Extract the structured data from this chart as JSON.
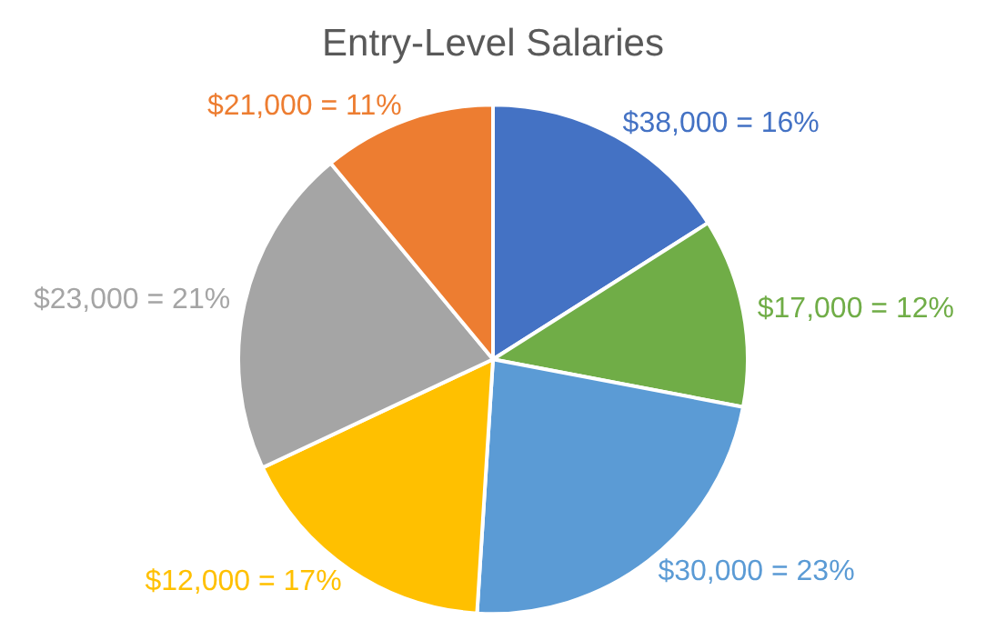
{
  "chart_data": {
    "type": "pie",
    "title": "Entry-Level Salaries",
    "categories": [
      null,
      null,
      null,
      null,
      null,
      null
    ],
    "values": [
      16,
      12,
      23,
      17,
      21,
      11
    ],
    "colors": [
      "#4472c4",
      "#70ad47",
      "#5b9bd5",
      "#ffc000",
      "#a5a5a5",
      "#ed7d31"
    ],
    "value_labels": [
      "$38,000 = 16%",
      "$17,000 = 12%",
      "$30,000 = 23%",
      "$12,000 = 17%",
      "$23,000 = 21%",
      "$21,000 = 11%"
    ],
    "legend": false
  }
}
